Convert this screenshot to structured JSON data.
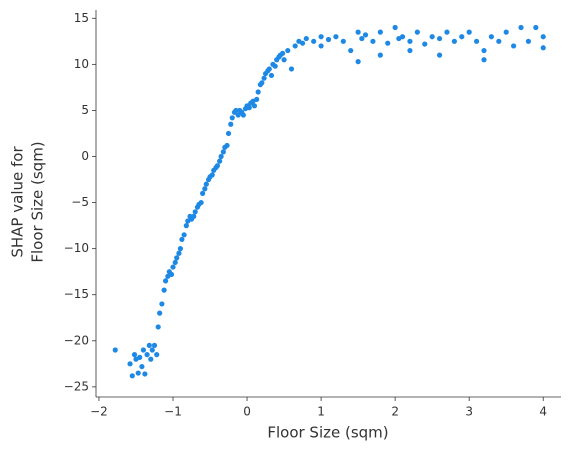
{
  "chart_data": {
    "type": "scatter",
    "x_label": "Floor Size (sqm)",
    "y_label": [
      "SHAP value for",
      "Floor Size (sqm)"
    ],
    "color": "#1e88e5",
    "xlim": [
      -2.04,
      4.24
    ],
    "ylim": [
      -26.1,
      15.9
    ],
    "xticks": [
      {
        "value": -2,
        "label": "−2"
      },
      {
        "value": -1,
        "label": "−1"
      },
      0,
      1,
      2,
      3,
      4
    ],
    "yticks": [
      {
        "value": -25,
        "label": "−25"
      },
      {
        "value": -20,
        "label": "−20"
      },
      {
        "value": -15,
        "label": "−15"
      },
      {
        "value": -10,
        "label": "−10"
      },
      {
        "value": -5,
        "label": "−5"
      },
      0,
      5,
      10,
      15
    ],
    "series": [
      {
        "name": "Floor Size (sqm)",
        "color": "#1e88e5",
        "x": [
          -1.78,
          -1.58,
          -1.55,
          -1.52,
          -1.5,
          -1.47,
          -1.45,
          -1.42,
          -1.4,
          -1.38,
          -1.35,
          -1.32,
          -1.3,
          -1.28,
          -1.25,
          -1.22,
          -1.2,
          -1.18,
          -1.15,
          -1.12,
          -1.1,
          -1.07,
          -1.05,
          -1.02,
          -1.0,
          -0.97,
          -0.95,
          -0.92,
          -0.9,
          -0.88,
          -0.85,
          -0.82,
          -0.8,
          -0.77,
          -0.75,
          -0.72,
          -0.7,
          -0.67,
          -0.65,
          -0.62,
          -0.6,
          -0.57,
          -0.55,
          -0.52,
          -0.5,
          -0.47,
          -0.45,
          -0.42,
          -0.4,
          -0.37,
          -0.35,
          -0.32,
          -0.3,
          -0.27,
          -0.25,
          -0.22,
          -0.2,
          -0.17,
          -0.15,
          -0.12,
          -0.1,
          -0.07,
          -0.05,
          -0.02,
          0.0,
          0.03,
          0.05,
          0.08,
          0.1,
          0.13,
          0.15,
          0.18,
          0.2,
          0.23,
          0.25,
          0.28,
          0.3,
          0.33,
          0.35,
          0.38,
          0.4,
          0.43,
          0.45,
          0.48,
          0.5,
          0.55,
          0.6,
          0.65,
          0.7,
          0.75,
          0.8,
          0.9,
          1.0,
          1.1,
          1.2,
          1.3,
          1.4,
          1.5,
          1.55,
          1.6,
          1.7,
          1.8,
          1.9,
          2.0,
          2.05,
          2.1,
          2.2,
          2.3,
          2.4,
          2.5,
          2.6,
          2.7,
          2.8,
          2.9,
          3.0,
          3.1,
          3.2,
          3.3,
          3.4,
          3.5,
          3.6,
          3.7,
          3.8,
          3.9,
          4.0,
          1.5,
          1.8,
          2.2,
          3.2,
          4.0,
          1.0,
          2.6
        ],
        "values": [
          -21,
          -22.5,
          -23.8,
          -21.5,
          -22,
          -23.5,
          -21.8,
          -22.8,
          -21,
          -23.6,
          -21.5,
          -20.5,
          -22,
          -21,
          -20.5,
          -21.5,
          -18.5,
          -17,
          -16,
          -14.5,
          -13.5,
          -13,
          -12.5,
          -12.8,
          -12,
          -11.5,
          -11,
          -10.5,
          -10,
          -9,
          -8.5,
          -7.5,
          -7,
          -6.5,
          -6.8,
          -6.5,
          -6,
          -5.5,
          -5.2,
          -5,
          -4,
          -3.5,
          -3,
          -2.5,
          -2.2,
          -2,
          -1.5,
          -1.2,
          -1,
          -0.5,
          0,
          0.5,
          1,
          1.2,
          2.5,
          3.5,
          4.2,
          4.8,
          5,
          4.5,
          5,
          4.8,
          4.5,
          5.2,
          5.5,
          5.3,
          5.8,
          6,
          5.5,
          6.2,
          7,
          7.8,
          8,
          8.5,
          9,
          9.3,
          9.5,
          8.8,
          10,
          9.8,
          10.5,
          10.8,
          11,
          11.2,
          10.5,
          11.5,
          9.5,
          12,
          12.5,
          12.3,
          12.8,
          12.5,
          13,
          12.7,
          13,
          12.5,
          11.5,
          13.5,
          12.8,
          13.2,
          12.5,
          13.5,
          12.3,
          14,
          12.8,
          13,
          12.5,
          13.5,
          12.2,
          13,
          12.8,
          13.5,
          12.5,
          13,
          13.5,
          12.5,
          11.5,
          13,
          12.5,
          13.5,
          12,
          14,
          12.5,
          14,
          13,
          10.3,
          11,
          11.5,
          10.5,
          11.8,
          12,
          11
        ]
      }
    ]
  }
}
